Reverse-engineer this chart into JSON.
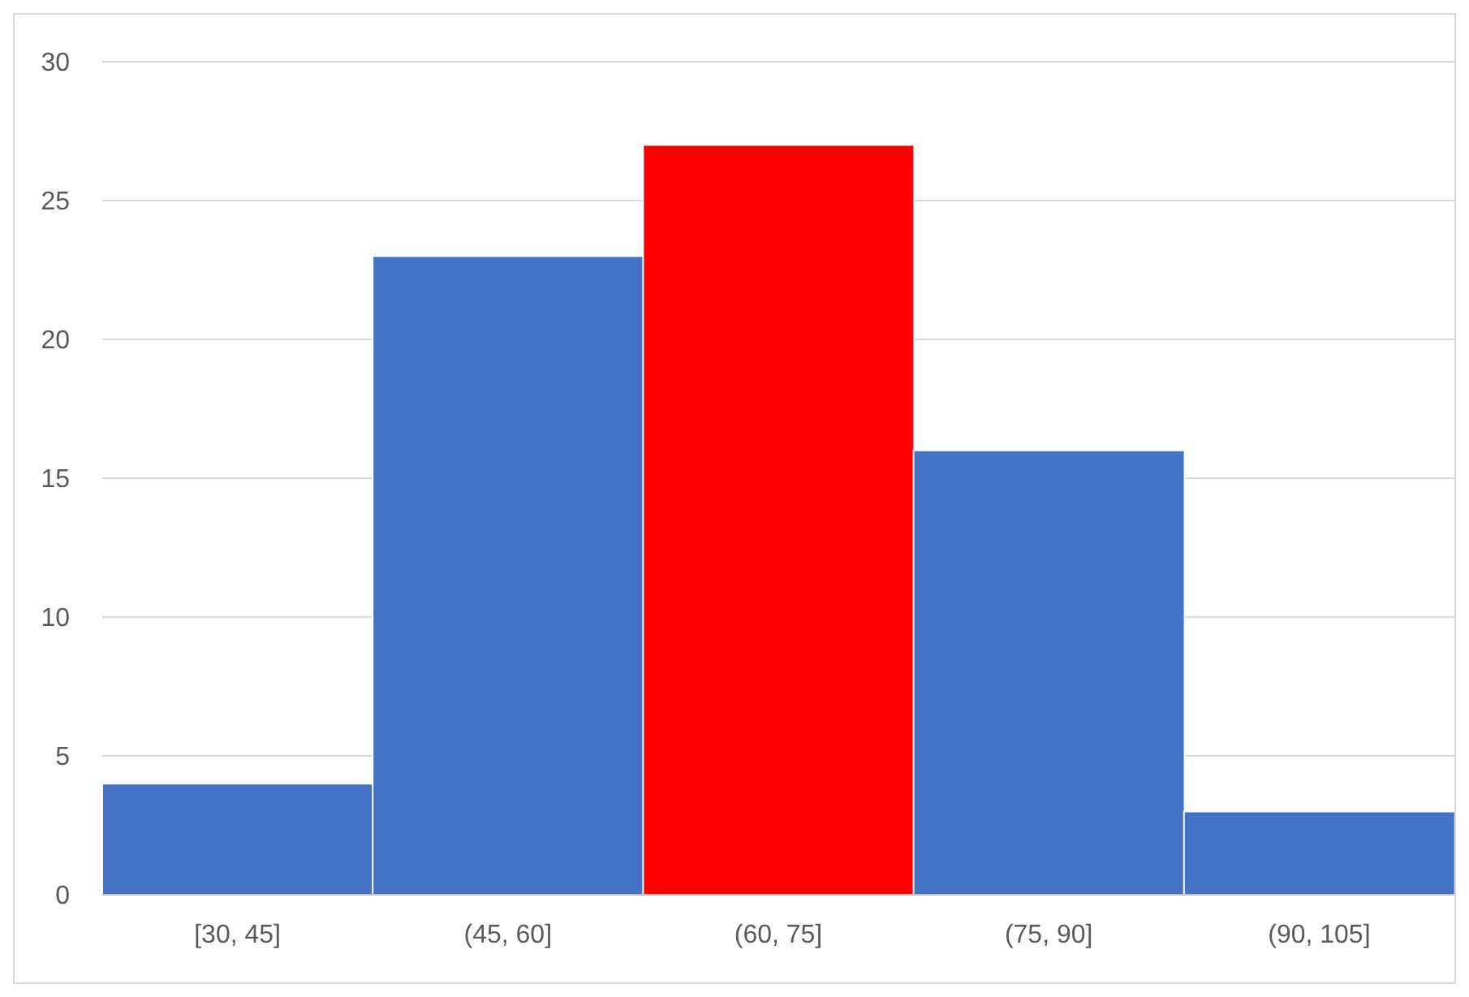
{
  "chart_data": {
    "type": "bar",
    "categories": [
      "[30, 45]",
      "(45, 60]",
      "(60, 75]",
      "(75, 90]",
      "(90, 105]"
    ],
    "values": [
      4,
      23,
      27,
      16,
      3
    ],
    "colors": [
      "#4472c4",
      "#4472c4",
      "#ff0000",
      "#4472c4",
      "#4472c4"
    ],
    "ylim": [
      0,
      30
    ],
    "yticks": [
      0,
      5,
      10,
      15,
      20,
      25,
      30
    ],
    "grid": "y"
  }
}
